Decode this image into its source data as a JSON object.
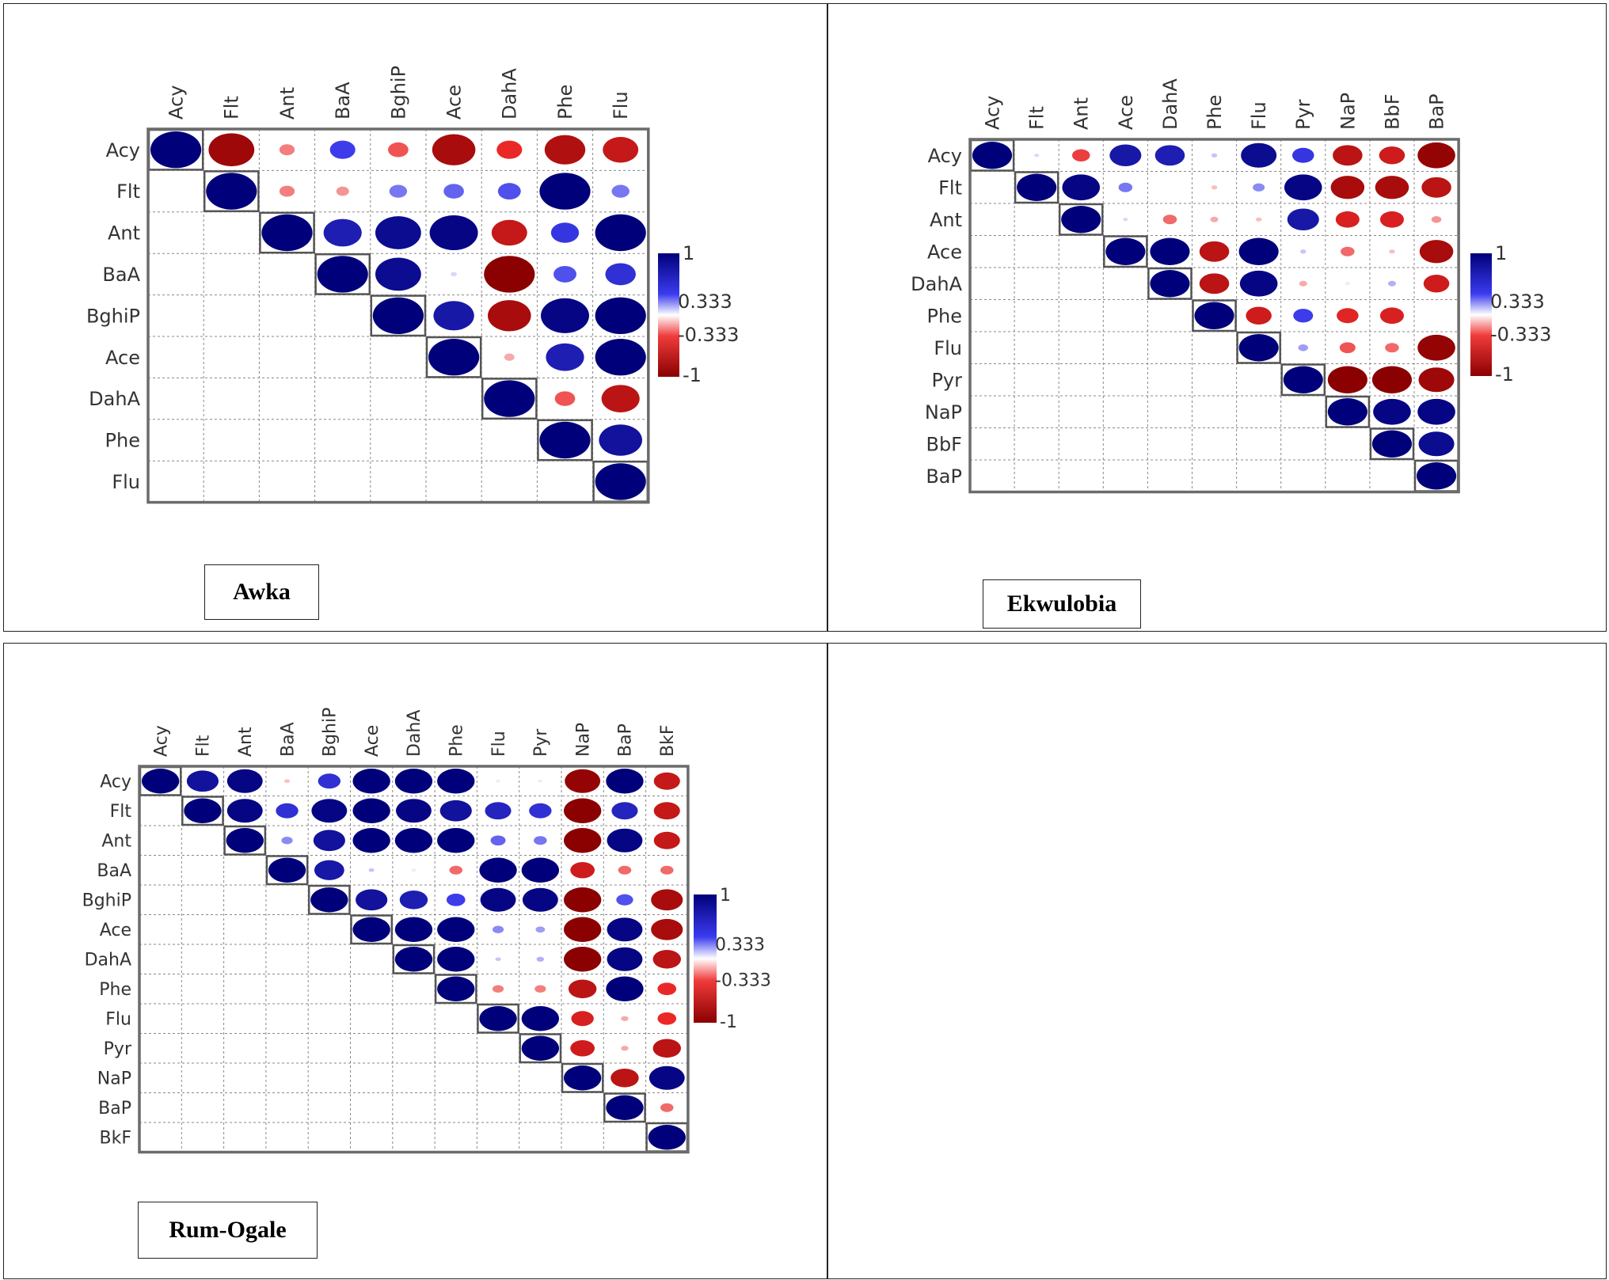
{
  "chart_data": [
    {
      "type": "heatmap",
      "style": "circle-correlation-upper-triangle",
      "title": "Awka",
      "variables": [
        "Acy",
        "Flt",
        "Ant",
        "BaA",
        "BghiP",
        "Ace",
        "DahA",
        "Phe",
        "Flu"
      ],
      "values": [
        [
          1,
          -0.9,
          -0.3,
          0.5,
          -0.4,
          -0.85,
          -0.5,
          -0.8,
          -0.7
        ],
        [
          null,
          1,
          -0.3,
          -0.25,
          0.35,
          0.4,
          0.45,
          1,
          0.35
        ],
        [
          null,
          null,
          1,
          0.75,
          0.9,
          0.95,
          -0.7,
          0.55,
          1
        ],
        [
          null,
          null,
          null,
          1,
          0.9,
          0.1,
          -1,
          0.45,
          0.6
        ],
        [
          null,
          null,
          null,
          null,
          1,
          0.8,
          -0.85,
          0.95,
          1
        ],
        [
          null,
          null,
          null,
          null,
          null,
          1,
          -0.2,
          0.75,
          1
        ],
        [
          null,
          null,
          null,
          null,
          null,
          null,
          1,
          -0.4,
          -0.75
        ],
        [
          null,
          null,
          null,
          null,
          null,
          null,
          null,
          1,
          0.85
        ],
        [
          null,
          null,
          null,
          null,
          null,
          null,
          null,
          null,
          1
        ]
      ],
      "colorbar": {
        "ticks": [
          "1",
          "0.333",
          "-0.333",
          "-1"
        ],
        "range": [
          -1,
          1
        ]
      },
      "colors": {
        "positive": "#00007a",
        "negative": "#8b0000",
        "mid": "#ffffff"
      }
    },
    {
      "type": "heatmap",
      "style": "circle-correlation-upper-triangle",
      "title": "Ekwulobia",
      "variables": [
        "Acy",
        "Flt",
        "Ant",
        "Ace",
        "DahA",
        "Phe",
        "Flu",
        "Pyr",
        "NaP",
        "BbF",
        "BaP"
      ],
      "values": [
        [
          1,
          0.1,
          -0.45,
          0.8,
          0.75,
          0.15,
          0.9,
          0.55,
          -0.75,
          -0.65,
          -0.95
        ],
        [
          null,
          1,
          0.95,
          0.35,
          null,
          -0.15,
          0.3,
          0.95,
          -0.85,
          -0.85,
          -0.75
        ],
        [
          null,
          null,
          1,
          0.1,
          -0.35,
          -0.2,
          -0.15,
          0.8,
          -0.6,
          -0.6,
          -0.25
        ],
        [
          null,
          null,
          null,
          1,
          1,
          -0.75,
          1,
          0.15,
          -0.35,
          -0.15,
          -0.85
        ],
        [
          null,
          null,
          null,
          null,
          1,
          -0.75,
          0.95,
          -0.2,
          0.05,
          0.2,
          -0.65
        ],
        [
          null,
          null,
          null,
          null,
          null,
          1,
          -0.65,
          0.5,
          -0.55,
          -0.6,
          null
        ],
        [
          null,
          null,
          null,
          null,
          null,
          null,
          1,
          0.25,
          -0.4,
          -0.35,
          -0.95
        ],
        [
          null,
          null,
          null,
          null,
          null,
          null,
          null,
          1,
          -1,
          -1,
          -0.9
        ],
        [
          null,
          null,
          null,
          null,
          null,
          null,
          null,
          null,
          1,
          0.95,
          0.95
        ],
        [
          null,
          null,
          null,
          null,
          null,
          null,
          null,
          null,
          null,
          1,
          0.9
        ],
        [
          null,
          null,
          null,
          null,
          null,
          null,
          null,
          null,
          null,
          null,
          1
        ]
      ],
      "colorbar": {
        "ticks": [
          "1",
          "0.333",
          "-0.333",
          "-1"
        ],
        "range": [
          -1,
          1
        ]
      },
      "colors": {
        "positive": "#00007a",
        "negative": "#8b0000",
        "mid": "#ffffff"
      }
    },
    {
      "type": "heatmap",
      "style": "circle-correlation-upper-triangle",
      "title": "Rum-Ogale",
      "variables": [
        "Acy",
        "Flt",
        "Ant",
        "BaA",
        "BghiP",
        "Ace",
        "DahA",
        "Phe",
        "Flu",
        "Pyr",
        "NaP",
        "BaP",
        "BkF"
      ],
      "values": [
        [
          1,
          0.85,
          0.95,
          -0.15,
          0.6,
          1,
          1,
          1,
          0.05,
          0.05,
          -0.95,
          1,
          -0.7
        ],
        [
          null,
          1,
          0.95,
          0.6,
          0.95,
          1,
          0.95,
          0.85,
          0.7,
          0.6,
          -1,
          0.7,
          -0.7
        ],
        [
          null,
          null,
          1,
          0.3,
          0.85,
          1,
          1,
          1,
          0.4,
          0.35,
          -1,
          0.95,
          -0.7
        ],
        [
          null,
          null,
          null,
          1,
          0.8,
          0.15,
          0.05,
          -0.35,
          1,
          1,
          -0.65,
          -0.35,
          -0.35
        ],
        [
          null,
          null,
          null,
          null,
          1,
          0.85,
          0.75,
          0.5,
          0.95,
          0.95,
          -1,
          0.45,
          -0.85
        ],
        [
          null,
          null,
          null,
          null,
          null,
          1,
          1,
          1,
          0.3,
          0.25,
          -1,
          0.95,
          -0.85
        ],
        [
          null,
          null,
          null,
          null,
          null,
          null,
          1,
          1,
          0.15,
          0.2,
          -1,
          0.95,
          -0.75
        ],
        [
          null,
          null,
          null,
          null,
          null,
          null,
          null,
          1,
          -0.3,
          -0.3,
          -0.75,
          1,
          -0.5
        ],
        [
          null,
          null,
          null,
          null,
          null,
          null,
          null,
          null,
          1,
          1,
          -0.6,
          -0.2,
          -0.5
        ],
        [
          null,
          null,
          null,
          null,
          null,
          null,
          null,
          null,
          null,
          1,
          -0.65,
          -0.2,
          -0.75
        ],
        [
          null,
          null,
          null,
          null,
          null,
          null,
          null,
          null,
          null,
          null,
          1,
          -0.75,
          0.95
        ],
        [
          null,
          null,
          null,
          null,
          null,
          null,
          null,
          null,
          null,
          null,
          null,
          1,
          -0.35
        ],
        [
          null,
          null,
          null,
          null,
          null,
          null,
          null,
          null,
          null,
          null,
          null,
          null,
          1
        ]
      ],
      "colorbar": {
        "ticks": [
          "1",
          "0.333",
          "-0.333",
          "-1"
        ],
        "range": [
          -1,
          1
        ]
      },
      "colors": {
        "positive": "#00007a",
        "negative": "#8b0000",
        "mid": "#ffffff"
      }
    }
  ]
}
